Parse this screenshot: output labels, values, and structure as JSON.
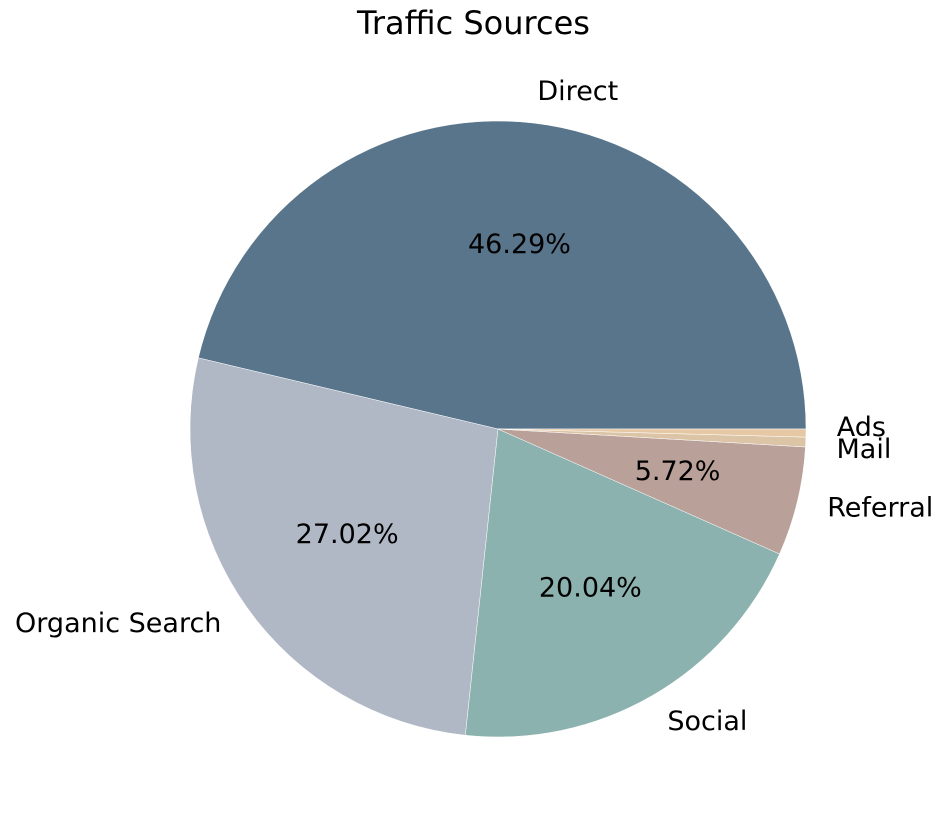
{
  "chart_data": {
    "type": "pie",
    "title": "Traffic Sources",
    "start_angle_deg": 0,
    "direction": "counterclockwise",
    "slices": [
      {
        "label": "Direct",
        "value": 46.29,
        "pct_label": "46.29%",
        "color": "#58758b"
      },
      {
        "label": "Organic Search",
        "value": 27.02,
        "pct_label": "27.02%",
        "color": "#b0b7c5"
      },
      {
        "label": "Social",
        "value": 20.04,
        "pct_label": "20.04%",
        "color": "#8bb2ae"
      },
      {
        "label": "Referral",
        "value": 5.72,
        "pct_label": "5.72%",
        "color": "#b9a099"
      },
      {
        "label": "Mail",
        "value": 0.51,
        "pct_label": "",
        "color": "#dcc4a7"
      },
      {
        "label": "Ads",
        "value": 0.42,
        "pct_label": "",
        "color": "#e6c9a4"
      }
    ]
  }
}
